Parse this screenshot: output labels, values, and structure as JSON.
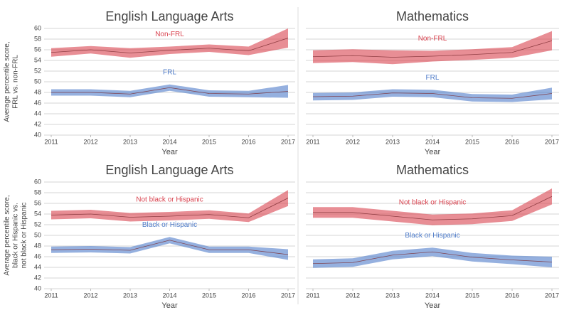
{
  "chart_data": [
    {
      "type": "line",
      "title": "English Language Arts",
      "xlabel": "Year",
      "ylabel": [
        "Average percentile score,",
        "FRL vs. non-FRL"
      ],
      "show_yticklabels": true,
      "x": [
        2011,
        2012,
        2013,
        2014,
        2015,
        2016,
        2017
      ],
      "ylim": [
        40,
        60
      ],
      "yticks": [
        40,
        42,
        44,
        46,
        48,
        50,
        52,
        54,
        56,
        58,
        60
      ],
      "grid": true,
      "series": [
        {
          "name": "Non-FRL",
          "color": "#d9434f",
          "values": [
            55.5,
            56.0,
            55.4,
            55.9,
            56.3,
            55.8,
            58.2
          ],
          "lower": [
            54.7,
            55.3,
            54.5,
            55.2,
            55.6,
            55.0,
            56.4
          ],
          "upper": [
            56.3,
            56.7,
            56.3,
            56.6,
            57.0,
            56.6,
            60.0
          ]
        },
        {
          "name": "FRL",
          "color": "#4f7cc9",
          "values": [
            48.0,
            48.0,
            47.7,
            48.9,
            47.8,
            47.7,
            48.2
          ],
          "lower": [
            47.4,
            47.4,
            47.1,
            48.3,
            47.2,
            47.1,
            47.0
          ],
          "upper": [
            48.6,
            48.6,
            48.3,
            49.5,
            48.4,
            48.3,
            49.4
          ]
        }
      ]
    },
    {
      "type": "line",
      "title": "Mathematics",
      "xlabel": "Year",
      "show_yticklabels": false,
      "x": [
        2011,
        2012,
        2013,
        2014,
        2015,
        2016,
        2017
      ],
      "ylim": [
        40,
        60
      ],
      "yticks": [
        40,
        42,
        44,
        46,
        48,
        50,
        52,
        54,
        56,
        58,
        60
      ],
      "grid": true,
      "series": [
        {
          "name": "Non-FRL",
          "color": "#d9434f",
          "values": [
            54.7,
            54.9,
            54.6,
            54.8,
            55.1,
            55.5,
            57.7
          ],
          "lower": [
            53.5,
            53.7,
            53.3,
            53.8,
            54.1,
            54.5,
            55.9
          ],
          "upper": [
            55.9,
            56.1,
            55.9,
            55.8,
            56.1,
            56.5,
            59.5
          ]
        },
        {
          "name": "FRL",
          "color": "#4f7cc9",
          "values": [
            47.2,
            47.3,
            47.9,
            47.8,
            47.0,
            46.9,
            47.8
          ],
          "lower": [
            46.5,
            46.6,
            47.2,
            47.1,
            46.3,
            46.2,
            46.7
          ],
          "upper": [
            47.9,
            48.0,
            48.6,
            48.5,
            47.7,
            47.6,
            48.9
          ]
        }
      ]
    },
    {
      "type": "line",
      "title": "English Language Arts",
      "xlabel": "Year",
      "ylabel": [
        "Average percentile score,",
        "black or Hispanic vs.",
        "not black or Hispanic"
      ],
      "show_yticklabels": true,
      "x": [
        2011,
        2012,
        2013,
        2014,
        2015,
        2016,
        2017
      ],
      "ylim": [
        40,
        60
      ],
      "yticks": [
        40,
        42,
        44,
        46,
        48,
        50,
        52,
        54,
        56,
        58,
        60
      ],
      "grid": true,
      "series": [
        {
          "name": "Not black or Hispanic",
          "color": "#d9434f",
          "values": [
            53.8,
            54.0,
            53.4,
            53.6,
            53.9,
            53.3,
            57.0
          ],
          "lower": [
            53.0,
            53.2,
            52.6,
            52.8,
            53.1,
            52.5,
            55.5
          ],
          "upper": [
            54.6,
            54.8,
            54.2,
            54.4,
            54.7,
            54.1,
            58.5
          ]
        },
        {
          "name": "Black or Hispanic",
          "color": "#4f7cc9",
          "values": [
            47.3,
            47.4,
            47.2,
            49.1,
            47.3,
            47.3,
            46.4
          ],
          "lower": [
            46.7,
            46.8,
            46.6,
            48.5,
            46.7,
            46.7,
            45.4
          ],
          "upper": [
            47.9,
            48.0,
            47.8,
            49.7,
            47.9,
            47.9,
            47.4
          ]
        }
      ]
    },
    {
      "type": "line",
      "title": "Mathematics",
      "xlabel": "Year",
      "show_yticklabels": false,
      "x": [
        2011,
        2012,
        2013,
        2014,
        2015,
        2016,
        2017
      ],
      "ylim": [
        40,
        60
      ],
      "yticks": [
        40,
        42,
        44,
        46,
        48,
        50,
        52,
        54,
        56,
        58,
        60
      ],
      "grid": true,
      "series": [
        {
          "name": "Not black or Hispanic",
          "color": "#d9434f",
          "values": [
            54.3,
            54.3,
            53.6,
            52.9,
            53.1,
            53.7,
            57.3
          ],
          "lower": [
            53.3,
            53.3,
            52.6,
            51.9,
            52.1,
            52.7,
            55.8
          ],
          "upper": [
            55.3,
            55.3,
            54.6,
            53.9,
            54.1,
            54.7,
            58.8
          ]
        },
        {
          "name": "Black or Hispanic",
          "color": "#4f7cc9",
          "values": [
            44.7,
            44.9,
            46.3,
            46.9,
            45.9,
            45.4,
            45.0
          ],
          "lower": [
            43.9,
            44.1,
            45.5,
            46.1,
            45.1,
            44.6,
            44.0
          ],
          "upper": [
            45.5,
            45.7,
            47.1,
            47.7,
            46.7,
            46.2,
            46.0
          ]
        }
      ]
    }
  ]
}
